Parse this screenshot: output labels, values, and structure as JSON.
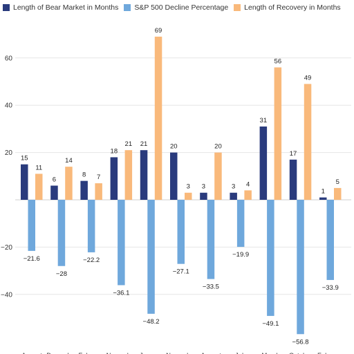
{
  "chart_data": {
    "type": "bar",
    "categories": [
      "August",
      "December",
      "February",
      "November",
      "January",
      "November",
      "August",
      "July",
      "March",
      "October",
      "February"
    ],
    "series": [
      {
        "name": "Length of Bear Market in Months",
        "color": "#2a3b7d",
        "values": [
          15,
          6,
          8,
          18,
          21,
          20,
          3,
          3,
          31,
          17,
          1
        ],
        "labels": [
          "15",
          "6",
          "8",
          "18",
          "21",
          "20",
          "3",
          "3",
          "31",
          "17",
          "1"
        ]
      },
      {
        "name": "S&P 500 Decline Percentage",
        "color": "#6fa8dc",
        "values": [
          -21.6,
          -28,
          -22.2,
          -36.1,
          -48.2,
          -27.1,
          -33.5,
          -19.9,
          -49.1,
          -56.8,
          -33.9
        ],
        "labels": [
          "−21.6",
          "−28",
          "−22.2",
          "−36.1",
          "−48.2",
          "−27.1",
          "−33.5",
          "−19.9",
          "−49.1",
          "−56.8",
          "−33.9"
        ]
      },
      {
        "name": "Length of Recovery in Months",
        "color": "#f9b97b",
        "values": [
          11,
          14,
          7,
          21,
          69,
          3,
          20,
          4,
          56,
          49,
          5
        ],
        "labels": [
          "11",
          "14",
          "7",
          "21",
          "69",
          "3",
          "20",
          "4",
          "56",
          "49",
          "5"
        ]
      }
    ],
    "y_ticks": [
      -40,
      -20,
      20,
      40,
      60
    ],
    "y_tick_labels": [
      "−40",
      "−20",
      "20",
      "40",
      "60"
    ],
    "ylim": [
      -62,
      74
    ],
    "grid": true,
    "legend_position": "top-left"
  }
}
